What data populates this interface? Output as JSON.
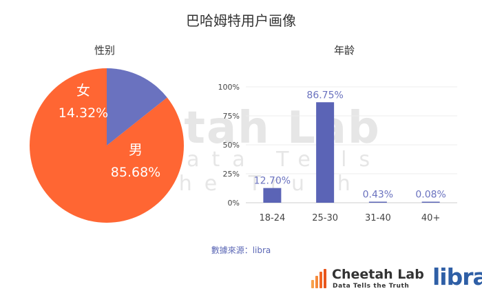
{
  "header": {
    "title": "巴哈姆特用户画像"
  },
  "chart_data": [
    {
      "type": "pie",
      "title": "性别",
      "slices": [
        {
          "label": "男",
          "value": 85.68,
          "value_label": "85.68%",
          "color": "#ff6633"
        },
        {
          "label": "女",
          "value": 14.32,
          "value_label": "14.32%",
          "color": "#6a72bf"
        }
      ]
    },
    {
      "type": "bar",
      "title": "年龄",
      "categories": [
        "18-24",
        "25-30",
        "31-40",
        "40+"
      ],
      "values": [
        12.7,
        86.75,
        0.43,
        0.08
      ],
      "value_labels": [
        "12.70%",
        "86.75%",
        "0.43%",
        "0.08%"
      ],
      "ylim": [
        0,
        100
      ],
      "yticks": [
        {
          "value": 0,
          "label": "0%"
        },
        {
          "value": 25,
          "label": "25%"
        },
        {
          "value": 50,
          "label": "50%"
        },
        {
          "value": 75,
          "label": "75%"
        },
        {
          "value": 100,
          "label": "100%"
        }
      ],
      "grid": true,
      "bar_color": "#5b64b6",
      "label_color": "#6a72bf"
    }
  ],
  "watermark": {
    "main": "Cheetah Lab",
    "sub": "Data Tells the Truth"
  },
  "footer": {
    "source": "數據來源：libra"
  },
  "branding": {
    "name": "Cheetah Lab",
    "slogan": "Data Tells the Truth",
    "partner": "libra",
    "accent": "#f26522"
  }
}
